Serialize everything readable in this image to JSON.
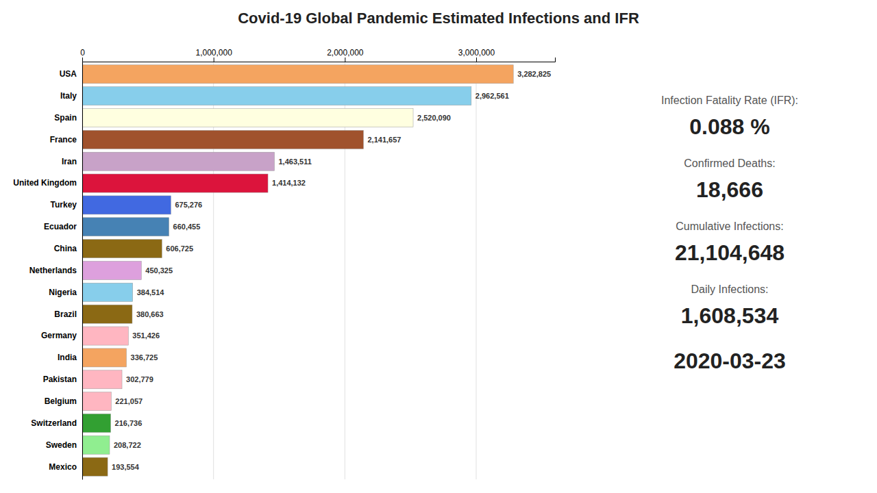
{
  "chart_data": {
    "type": "bar",
    "orientation": "horizontal",
    "title": "Covid-19 Global Pandemic Estimated Infections and IFR",
    "categories": [
      "USA",
      "Italy",
      "Spain",
      "France",
      "Iran",
      "United Kingdom",
      "Turkey",
      "Ecuador",
      "China",
      "Netherlands",
      "Nigeria",
      "Brazil",
      "Germany",
      "India",
      "Pakistan",
      "Belgium",
      "Switzerland",
      "Sweden",
      "Mexico"
    ],
    "values": [
      3282825,
      2962561,
      2520090,
      2141657,
      1463511,
      1414132,
      675276,
      660455,
      606725,
      450325,
      384514,
      380663,
      351426,
      336725,
      302779,
      221057,
      216736,
      208722,
      193554
    ],
    "value_labels": [
      "3,282,825",
      "2,962,561",
      "2,520,090",
      "2,141,657",
      "1,463,511",
      "1,414,132",
      "675,276",
      "660,455",
      "606,725",
      "450,325",
      "384,514",
      "380,663",
      "351,426",
      "336,725",
      "302,779",
      "221,057",
      "216,736",
      "208,722",
      "193,554"
    ],
    "colors": [
      "#F4A460",
      "#87CEEB",
      "#FFFFE0",
      "#A0522D",
      "#C8A2C8",
      "#DC143C",
      "#4169E1",
      "#4682B4",
      "#8B6914",
      "#DDA0DD",
      "#87CEEB",
      "#8B6914",
      "#FFB6C1",
      "#F4A460",
      "#FFB6C1",
      "#FFB6C1",
      "#32A032",
      "#90EE90",
      "#8B6914"
    ],
    "data_labels": true,
    "xlim": [
      0,
      3600000
    ],
    "xticks": [
      0,
      {
        "value": 1000000,
        "label": "1,000,000"
      },
      {
        "value": 2000000,
        "label": "2,000,000"
      },
      {
        "value": 3000000,
        "label": "3,000,000"
      }
    ],
    "grid": true,
    "annotations": [
      "Infection Fatality Rate (IFR):",
      "0.088 %",
      "Confirmed Deaths:",
      "18,666",
      "Cumulative Infections:",
      "21,104,648",
      "Daily Infections:",
      "1,608,534",
      "2020-03-23"
    ]
  }
}
